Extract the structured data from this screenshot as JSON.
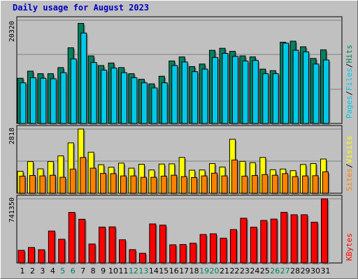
{
  "chart_data": [
    {
      "type": "bar",
      "title": "Daily usage for August 2023",
      "categories": [
        "1",
        "2",
        "3",
        "4",
        "5",
        "6",
        "7",
        "8",
        "9",
        "10",
        "11",
        "12",
        "13",
        "14",
        "15",
        "16",
        "17",
        "18",
        "19",
        "20",
        "21",
        "22",
        "23",
        "24",
        "25",
        "26",
        "27",
        "28",
        "29",
        "30",
        "31"
      ],
      "weekend_days": [
        "5",
        "6",
        "12",
        "13",
        "19",
        "20",
        "26",
        "27"
      ],
      "ylabel_max": "20320",
      "ymax": 20320,
      "series": [
        {
          "name": "Hits",
          "color": "#008060",
          "values": [
            8900,
            10300,
            9800,
            9800,
            11000,
            14900,
            19700,
            13300,
            11400,
            11900,
            11000,
            9800,
            8700,
            7800,
            9300,
            12300,
            13100,
            11200,
            11700,
            14400,
            14800,
            14200,
            13300,
            13100,
            10700,
            10400,
            16000,
            16200,
            15100,
            12800,
            14500
          ]
        },
        {
          "name": "Files",
          "color": "#00c8e8",
          "values": [
            8000,
            9000,
            8900,
            8800,
            10000,
            12700,
            17800,
            12000,
            10500,
            10900,
            10000,
            9000,
            8000,
            7000,
            8000,
            11400,
            12100,
            10200,
            10700,
            13000,
            13800,
            13200,
            12300,
            12400,
            9800,
            9800,
            15800,
            14400,
            14100,
            11700,
            12500
          ]
        },
        {
          "name": "Pages",
          "color": "#00c8e8"
        }
      ]
    },
    {
      "type": "bar",
      "ylabel_max": "2818",
      "ymax": 2818,
      "series": [
        {
          "name": "Visits",
          "color": "#ffff00",
          "values": [
            960,
            1390,
            1070,
            1390,
            1640,
            2210,
            2818,
            1800,
            1250,
            1140,
            1320,
            1100,
            1270,
            1020,
            1280,
            1290,
            1570,
            1010,
            1020,
            1300,
            1150,
            2370,
            1400,
            1340,
            1570,
            1030,
            1060,
            990,
            1260,
            1300,
            1500
          ]
        },
        {
          "name": "Sites",
          "color": "#ff8000",
          "values": [
            750,
            780,
            760,
            790,
            700,
            1060,
            1570,
            1100,
            870,
            860,
            760,
            760,
            700,
            700,
            750,
            790,
            730,
            690,
            760,
            880,
            760,
            1460,
            750,
            780,
            820,
            790,
            860,
            730,
            760,
            770,
            940
          ]
        }
      ]
    },
    {
      "type": "bar",
      "ylabel_max": "741350",
      "ymax": 741350,
      "series": [
        {
          "name": "KBytes",
          "color": "#ff0000",
          "values": [
            146000,
            179000,
            153000,
            369000,
            274000,
            584000,
            505000,
            219000,
            414000,
            417000,
            268000,
            154000,
            112000,
            451000,
            437000,
            210000,
            213000,
            228000,
            329000,
            337000,
            287000,
            386000,
            517000,
            413000,
            491000,
            507000,
            585000,
            557000,
            557000,
            471000,
            741350
          ]
        }
      ]
    }
  ]
}
